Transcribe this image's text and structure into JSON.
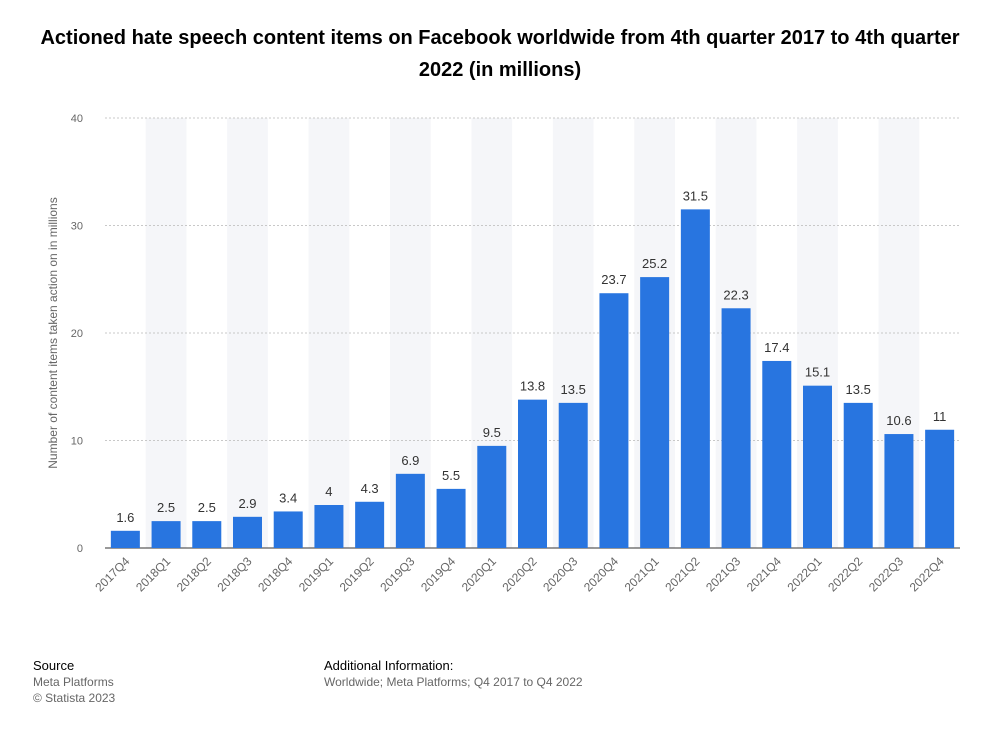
{
  "title": "Actioned hate speech content items on Facebook worldwide from 4th quarter 2017 to 4th quarter 2022 (in millions)",
  "chart_data": {
    "type": "bar",
    "title": "Actioned hate speech content items on Facebook worldwide from 4th quarter 2017 to 4th quarter 2022 (in millions)",
    "ylabel": "Number of content items taken action on in millions",
    "xlabel": "",
    "ylim": [
      0,
      40
    ],
    "yticks": [
      0,
      10,
      20,
      30,
      40
    ],
    "grid": true,
    "categories": [
      "2017Q4",
      "2018Q1",
      "2018Q2",
      "2018Q3",
      "2018Q4",
      "2019Q1",
      "2019Q2",
      "2019Q3",
      "2019Q4",
      "2020Q1",
      "2020Q2",
      "2020Q3",
      "2020Q4",
      "2021Q1",
      "2021Q2",
      "2021Q3",
      "2021Q4",
      "2022Q1",
      "2022Q2",
      "2022Q3",
      "2022Q4"
    ],
    "values": [
      1.6,
      2.5,
      2.5,
      2.9,
      3.4,
      4,
      4.3,
      6.9,
      5.5,
      9.5,
      13.8,
      13.5,
      23.7,
      25.2,
      31.5,
      22.3,
      17.4,
      15.1,
      13.5,
      10.6,
      11
    ],
    "bar_color": "#2875e0"
  },
  "footer": {
    "source_heading": "Source",
    "source_line1": "Meta Platforms",
    "source_line2": "© Statista 2023",
    "info_heading": "Additional Information:",
    "info_text": "Worldwide; Meta Platforms; Q4 2017 to Q4 2022"
  }
}
